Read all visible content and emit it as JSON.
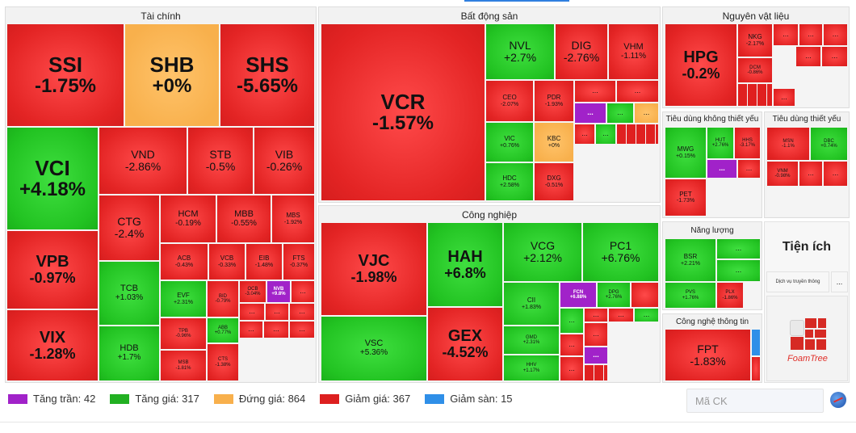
{
  "legend": [
    {
      "label": "Tăng trần: 42",
      "color": "#a122c9"
    },
    {
      "label": "Tăng giá: 317",
      "color": "#22b022"
    },
    {
      "label": "Đứng giá: 864",
      "color": "#f8b04c"
    },
    {
      "label": "Giảm giá: 367",
      "color": "#dd1f1f"
    },
    {
      "label": "Giảm sàn: 15",
      "color": "#2f8fe8"
    }
  ],
  "search": {
    "placeholder": "Mã CK"
  },
  "sectors": {
    "taichinh": "Tài chính",
    "batdongsan": "Bất động sản",
    "nguyenvatlieu": "Nguyên vật liệu",
    "congnghiep": "Công nghiệp",
    "tieudung_khong": "Tiêu dùng không thiết yếu",
    "tieudung": "Tiêu dùng thiết yếu",
    "nangluong": "Năng lượng",
    "tienich": "Tiện ích",
    "congnghe": "Công nghệ thông tin"
  },
  "tienich_sub": "Dịch vụ truyền thông",
  "foamtree_label": "FoamTree",
  "more": "...",
  "stocks": {
    "ssi": {
      "t": "SSI",
      "c": "-1.75%"
    },
    "shb": {
      "t": "SHB",
      "c": "+0%"
    },
    "shs": {
      "t": "SHS",
      "c": "-5.65%"
    },
    "vci": {
      "t": "VCI",
      "c": "+4.18%"
    },
    "vnd": {
      "t": "VND",
      "c": "-2.86%"
    },
    "stb": {
      "t": "STB",
      "c": "-0.5%"
    },
    "vib": {
      "t": "VIB",
      "c": "-0.26%"
    },
    "vpb": {
      "t": "VPB",
      "c": "-0.97%"
    },
    "ctg": {
      "t": "CTG",
      "c": "-2.4%"
    },
    "hcm": {
      "t": "HCM",
      "c": "-0.19%"
    },
    "mbb": {
      "t": "MBB",
      "c": "-0.55%"
    },
    "mbs": {
      "t": "MBS",
      "c": "-1.92%"
    },
    "acb": {
      "t": "ACB",
      "c": "-0.43%"
    },
    "vcb": {
      "t": "VCB",
      "c": "-0.33%"
    },
    "eib": {
      "t": "EIB",
      "c": "-1.48%"
    },
    "fts": {
      "t": "FTS",
      "c": "-0.37%"
    },
    "vix": {
      "t": "VIX",
      "c": "-1.28%"
    },
    "tcb": {
      "t": "TCB",
      "c": "+1.03%"
    },
    "evf": {
      "t": "EVF",
      "c": "+2.31%"
    },
    "bid": {
      "t": "BID",
      "c": "-0.79%"
    },
    "ocb": {
      "t": "OCB",
      "c": "-3.04%"
    },
    "nvb": {
      "t": "NVB",
      "c": "+9.8%"
    },
    "hdb": {
      "t": "HDB",
      "c": "+1.7%"
    },
    "tpb": {
      "t": "TPB",
      "c": "-0.96%"
    },
    "abb": {
      "t": "ABB",
      "c": "+0.77%"
    },
    "msb": {
      "t": "MSB",
      "c": "-1.81%"
    },
    "cts": {
      "t": "CTS",
      "c": "-1.38%"
    },
    "vcr": {
      "t": "VCR",
      "c": "-1.57%"
    },
    "nvl": {
      "t": "NVL",
      "c": "+2.7%"
    },
    "dig": {
      "t": "DIG",
      "c": "-2.76%"
    },
    "vhm": {
      "t": "VHM",
      "c": "-1.11%"
    },
    "ceo": {
      "t": "CEO",
      "c": "-2.07%"
    },
    "pdr": {
      "t": "PDR",
      "c": "-1.93%"
    },
    "vic": {
      "t": "VIC",
      "c": "+0.76%"
    },
    "kbc": {
      "t": "KBC",
      "c": "+0%"
    },
    "hdc": {
      "t": "HDC",
      "c": "+2.58%"
    },
    "dxg": {
      "t": "DXG",
      "c": "-0.51%"
    },
    "hpg": {
      "t": "HPG",
      "c": "-0.2%"
    },
    "nkg": {
      "t": "NKG",
      "c": "-2.17%"
    },
    "dcm": {
      "t": "DCM",
      "c": "-0.86%"
    },
    "mwg": {
      "t": "MWG",
      "c": "+0.15%"
    },
    "hut": {
      "t": "HUT",
      "c": "+2.76%"
    },
    "hhs": {
      "t": "HHS",
      "c": "-3.17%"
    },
    "pet": {
      "t": "PET",
      "c": "-1.73%"
    },
    "msn": {
      "t": "MSN",
      "c": "-1.1%"
    },
    "dbc": {
      "t": "DBC",
      "c": "+0.74%"
    },
    "vnm": {
      "t": "VNM",
      "c": "-0.98%"
    },
    "vjc": {
      "t": "VJC",
      "c": "-1.98%"
    },
    "hah": {
      "t": "HAH",
      "c": "+6.8%"
    },
    "vcg": {
      "t": "VCG",
      "c": "+2.12%"
    },
    "pc1": {
      "t": "PC1",
      "c": "+6.76%"
    },
    "cii": {
      "t": "CII",
      "c": "+1.83%"
    },
    "fcn": {
      "t": "FCN",
      "c": "+6.88%"
    },
    "dpg": {
      "t": "DPG",
      "c": "+2.76%"
    },
    "vsc": {
      "t": "VSC",
      "c": "+5.36%"
    },
    "gex": {
      "t": "GEX",
      "c": "-4.52%"
    },
    "gmd": {
      "t": "GMD",
      "c": "+2.31%"
    },
    "hhv": {
      "t": "HHV",
      "c": "+1.17%"
    },
    "bsr": {
      "t": "BSR",
      "c": "+2.21%"
    },
    "pvs": {
      "t": "PVS",
      "c": "+1.76%"
    },
    "plx": {
      "t": "PLX",
      "c": "-1.86%"
    },
    "fpt": {
      "t": "FPT",
      "c": "-1.83%"
    }
  }
}
